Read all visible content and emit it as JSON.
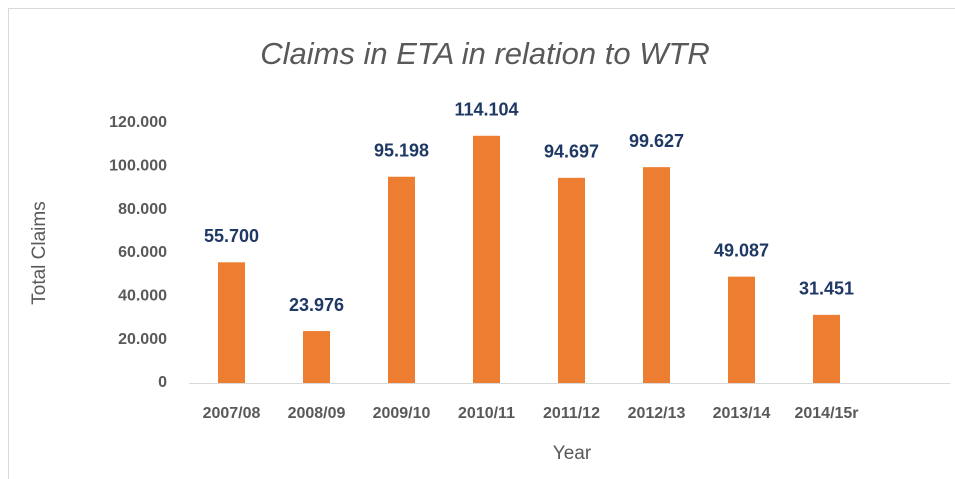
{
  "chart_data": {
    "type": "bar",
    "title": "Claims in ETA in relation to WTR",
    "categories": [
      "2007/08",
      "2008/09",
      "2009/10",
      "2010/11",
      "2011/12",
      "2012/13",
      "2013/14",
      "2014/15r"
    ],
    "values": [
      55700,
      23976,
      95198,
      114104,
      94697,
      99627,
      49087,
      31451
    ],
    "value_labels": [
      "55.700",
      "23.976",
      "95.198",
      "114.104",
      "94.697",
      "99.627",
      "49.087",
      "31.451"
    ],
    "color": "#ed7d31",
    "x_label": "Year",
    "y_label": "Total  Claims",
    "ylim": [
      0,
      120000
    ],
    "yticks": [
      0,
      {
        "value": 20000,
        "label": "20.000"
      },
      {
        "value": 40000,
        "label": "40.000"
      },
      {
        "value": 60000,
        "label": "60.000"
      },
      {
        "value": 80000,
        "label": "80.000"
      },
      {
        "value": 100000,
        "label": "100.000"
      },
      {
        "value": 120000,
        "label": "120.000"
      }
    ],
    "grid": false
  }
}
